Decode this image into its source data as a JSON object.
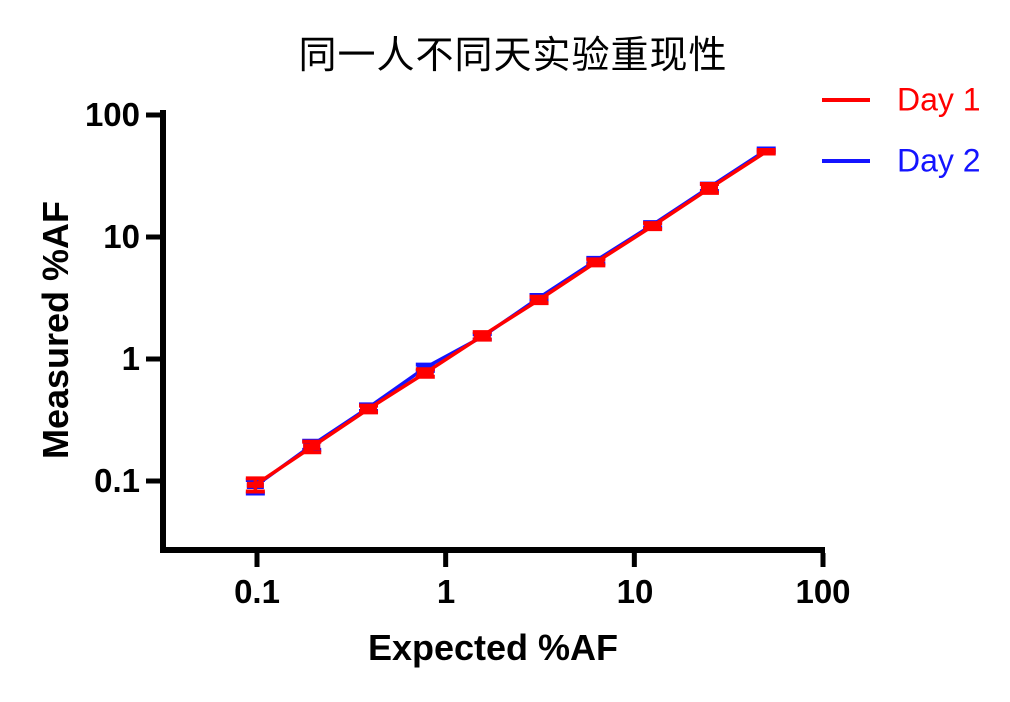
{
  "chart_data": {
    "type": "line",
    "title": "同一人不同天实验重现性",
    "xlabel": "Expected %AF",
    "ylabel": "Measured %AF",
    "x_scale": "log",
    "y_scale": "log",
    "xlim": [
      0.032,
      100
    ],
    "ylim": [
      0.027,
      106
    ],
    "grid": false,
    "legend_position": "top-right",
    "error_bars": true,
    "marker": "horizontal-dash",
    "axis_color": "#000000",
    "x_ticks": [
      {
        "v": 0.1,
        "label": "0.1"
      },
      {
        "v": 1,
        "label": "1"
      },
      {
        "v": 10,
        "label": "10"
      },
      {
        "v": 100,
        "label": "100"
      }
    ],
    "y_ticks": [
      {
        "v": 100,
        "label": "100"
      },
      {
        "v": 10,
        "label": "10"
      },
      {
        "v": 1,
        "label": "1"
      },
      {
        "v": 0.1,
        "label": "0.1"
      }
    ],
    "series": [
      {
        "name": "Day 1",
        "color": "#FF0000",
        "x": [
          0.098,
          0.195,
          0.39,
          0.78,
          1.5625,
          3.125,
          6.25,
          12.5,
          25.0,
          50.0
        ],
        "y": [
          0.093,
          0.19,
          0.39,
          0.77,
          1.55,
          3.05,
          6.2,
          12.3,
          25.0,
          50.0
        ],
        "y_err_lo": [
          0.082,
          0.172,
          0.365,
          0.715,
          1.44,
          2.87,
          5.85,
          11.6,
          23.0,
          48.3
        ],
        "y_err_hi": [
          0.105,
          0.21,
          0.415,
          0.825,
          1.66,
          3.24,
          6.55,
          13.0,
          27.2,
          51.7
        ]
      },
      {
        "name": "Day 2",
        "color": "#1414FF",
        "x": [
          0.098,
          0.195,
          0.39,
          0.78,
          1.5625,
          3.125,
          6.25,
          12.5,
          25.0,
          50.0
        ],
        "y": [
          0.091,
          0.196,
          0.4,
          0.85,
          1.52,
          3.18,
          6.4,
          12.6,
          25.6,
          51.5
        ],
        "y_err_lo": [
          0.079,
          0.18,
          0.375,
          0.8,
          1.445,
          3.02,
          6.05,
          11.95,
          23.8,
          49.8
        ],
        "y_err_hi": [
          0.102,
          0.214,
          0.425,
          0.9,
          1.6,
          3.35,
          6.75,
          13.25,
          27.4,
          53.2
        ]
      }
    ]
  }
}
